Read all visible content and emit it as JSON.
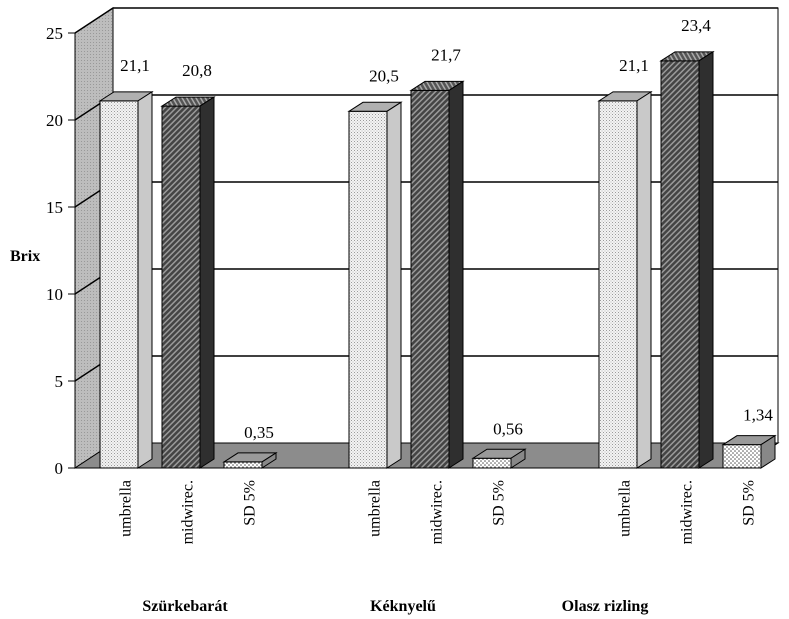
{
  "chart_data": {
    "type": "bar",
    "ylabel": "Brix",
    "ylim": [
      0,
      25
    ],
    "yticks": [
      0,
      5,
      10,
      15,
      20,
      25
    ],
    "grid": true,
    "groups": [
      {
        "name": "Szürkebarát",
        "bars": [
          {
            "category": "umbrella",
            "value": 21.1,
            "label": "21,1",
            "style": "light"
          },
          {
            "category": "midwirec.",
            "value": 20.8,
            "label": "20,8",
            "style": "dark"
          },
          {
            "category": "SD 5%",
            "value": 0.35,
            "label": "0,35",
            "style": "dot"
          }
        ]
      },
      {
        "name": "Kéknyelű",
        "bars": [
          {
            "category": "umbrella",
            "value": 20.5,
            "label": "20,5",
            "style": "light"
          },
          {
            "category": "midwirec.",
            "value": 21.7,
            "label": "21,7",
            "style": "dark"
          },
          {
            "category": "SD 5%",
            "value": 0.56,
            "label": "0,56",
            "style": "dot"
          }
        ]
      },
      {
        "name": "Olasz rizling",
        "bars": [
          {
            "category": "umbrella",
            "value": 21.1,
            "label": "21,1",
            "style": "light"
          },
          {
            "category": "midwirec.",
            "value": 23.4,
            "label": "23,4",
            "style": "dark"
          },
          {
            "category": "SD 5%",
            "value": 1.34,
            "label": "1,34",
            "style": "dot"
          }
        ]
      }
    ]
  }
}
